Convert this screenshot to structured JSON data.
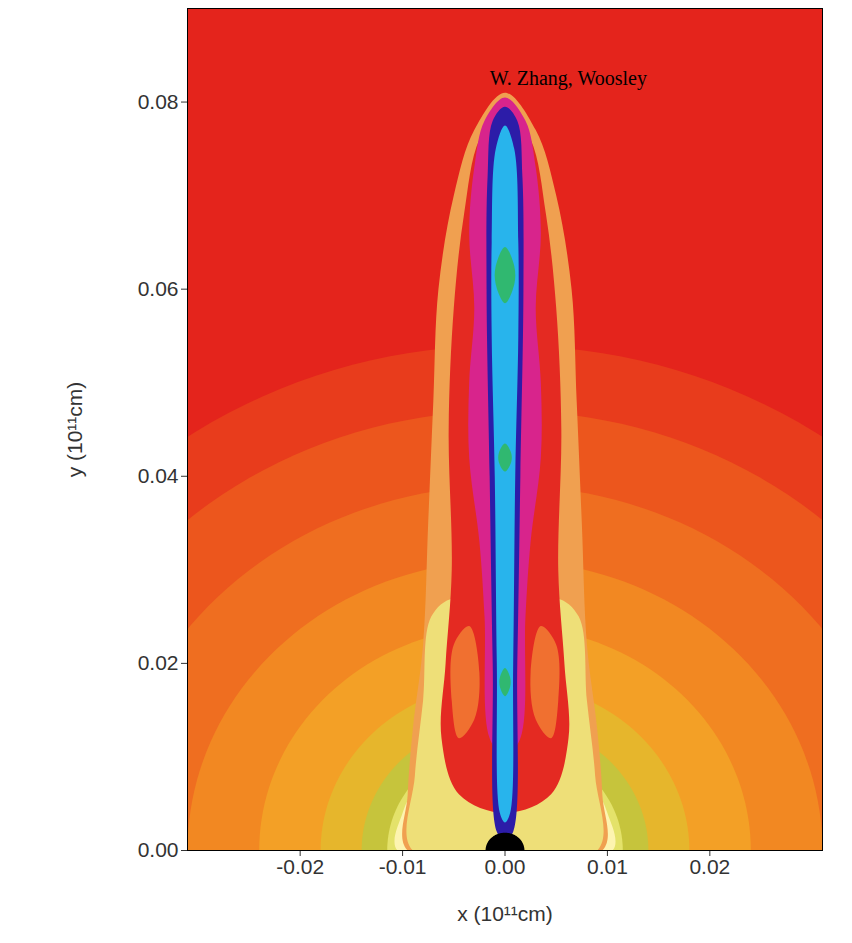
{
  "chart_data": {
    "type": "contour",
    "x_label": "x (10¹¹cm)",
    "y_label": "y (10¹¹cm)",
    "xlim": [
      -0.031,
      0.031
    ],
    "ylim": [
      0,
      0.09
    ],
    "xticks": [
      -0.02,
      -0.01,
      {
        "value": 0,
        "label": "0.00"
      },
      0.01,
      0.02
    ],
    "yticks": [
      {
        "value": 0,
        "label": "0.00"
      },
      0.02,
      0.04,
      0.06,
      0.08
    ],
    "color": "#e4241c",
    "annotations": [
      {
        "text": "W. Zhang, Woosley",
        "x": -0.0015,
        "y": 0.0825
      }
    ],
    "bands": [
      {
        "r": 0.054,
        "color": "#e83c1c"
      },
      {
        "r": 0.047,
        "color": "#ec561d"
      },
      {
        "r": 0.039,
        "color": "#ef6e20"
      },
      {
        "r": 0.031,
        "color": "#f28822"
      },
      {
        "r": 0.024,
        "color": "#f3a026"
      },
      {
        "r": 0.018,
        "color": "#e6b62c"
      },
      {
        "r": 0.014,
        "color": "#c6c43c"
      },
      {
        "r": 0.0115,
        "color": "#e4e26a"
      }
    ],
    "regions": [
      {
        "color": "#fdf4b0",
        "points": [
          [
            -0.0105,
            0
          ],
          [
            -0.01,
            0.004
          ],
          [
            -0.0085,
            0.007
          ],
          [
            -0.006,
            0.0085
          ],
          [
            -0.003,
            0.009
          ],
          [
            0,
            0.008
          ],
          [
            0.003,
            0.009
          ],
          [
            0.006,
            0.0085
          ],
          [
            0.0085,
            0.007
          ],
          [
            0.01,
            0.004
          ],
          [
            0.0105,
            0
          ]
        ]
      },
      {
        "color": "#f0a050",
        "points": [
          [
            -0.0095,
            0
          ],
          [
            -0.0095,
            0.006
          ],
          [
            -0.009,
            0.013
          ],
          [
            -0.008,
            0.022
          ],
          [
            -0.0075,
            0.035
          ],
          [
            -0.007,
            0.048
          ],
          [
            -0.0065,
            0.06
          ],
          [
            -0.005,
            0.07
          ],
          [
            -0.003,
            0.077
          ],
          [
            0,
            0.081
          ],
          [
            0.003,
            0.077
          ],
          [
            0.005,
            0.07
          ],
          [
            0.0065,
            0.06
          ],
          [
            0.007,
            0.048
          ],
          [
            0.0075,
            0.035
          ],
          [
            0.008,
            0.022
          ],
          [
            0.009,
            0.013
          ],
          [
            0.0095,
            0.006
          ],
          [
            0.0095,
            0
          ]
        ]
      },
      {
        "color": "#eedf78",
        "points": [
          [
            -0.009,
            0
          ],
          [
            -0.0088,
            0.008
          ],
          [
            -0.008,
            0.016
          ],
          [
            -0.0072,
            0.025
          ],
          [
            -0.005,
            0.027
          ],
          [
            0,
            0.026
          ],
          [
            0.005,
            0.027
          ],
          [
            0.0072,
            0.025
          ],
          [
            0.008,
            0.016
          ],
          [
            0.0088,
            0.008
          ],
          [
            0.009,
            0
          ]
        ]
      },
      {
        "color": "#e42a22",
        "points": [
          [
            -0.0045,
            0.006
          ],
          [
            -0.0062,
            0.012
          ],
          [
            -0.0058,
            0.02
          ],
          [
            -0.0052,
            0.03
          ],
          [
            -0.0055,
            0.045
          ],
          [
            -0.005,
            0.058
          ],
          [
            -0.004,
            0.068
          ],
          [
            -0.0025,
            0.076
          ],
          [
            0,
            0.0795
          ],
          [
            0.0025,
            0.076
          ],
          [
            0.004,
            0.068
          ],
          [
            0.005,
            0.058
          ],
          [
            0.0055,
            0.045
          ],
          [
            0.0052,
            0.03
          ],
          [
            0.0058,
            0.02
          ],
          [
            0.0062,
            0.012
          ],
          [
            0.0045,
            0.006
          ],
          [
            0,
            0.004
          ]
        ]
      },
      {
        "color": "#f07030",
        "points": [
          [
            -0.0045,
            0.012
          ],
          [
            -0.003,
            0.014
          ],
          [
            -0.0025,
            0.019
          ],
          [
            -0.0035,
            0.024
          ],
          [
            -0.005,
            0.022
          ],
          [
            -0.0052,
            0.016
          ]
        ]
      },
      {
        "color": "#f07030",
        "points": [
          [
            0.0045,
            0.012
          ],
          [
            0.003,
            0.014
          ],
          [
            0.0025,
            0.019
          ],
          [
            0.0035,
            0.024
          ],
          [
            0.005,
            0.022
          ],
          [
            0.0052,
            0.016
          ]
        ]
      },
      {
        "color": "#d8248c",
        "points": [
          [
            0,
            0.01
          ],
          [
            -0.0015,
            0.012
          ],
          [
            -0.002,
            0.025
          ],
          [
            -0.0025,
            0.033
          ],
          [
            -0.0035,
            0.042
          ],
          [
            -0.0035,
            0.05
          ],
          [
            -0.003,
            0.058
          ],
          [
            -0.0035,
            0.066
          ],
          [
            -0.003,
            0.073
          ],
          [
            -0.002,
            0.078
          ],
          [
            0,
            0.0805
          ],
          [
            0.002,
            0.078
          ],
          [
            0.003,
            0.073
          ],
          [
            0.0035,
            0.066
          ],
          [
            0.003,
            0.058
          ],
          [
            0.0035,
            0.05
          ],
          [
            0.0035,
            0.042
          ],
          [
            0.0025,
            0.033
          ],
          [
            0.002,
            0.025
          ],
          [
            0.0015,
            0.012
          ]
        ]
      },
      {
        "color": "#2c1ca8",
        "points": [
          [
            0,
            0.001
          ],
          [
            -0.0008,
            0.002
          ],
          [
            -0.0012,
            0.02
          ],
          [
            -0.0015,
            0.04
          ],
          [
            -0.0018,
            0.06
          ],
          [
            -0.0017,
            0.072
          ],
          [
            -0.0012,
            0.078
          ],
          [
            0,
            0.0795
          ],
          [
            0.0012,
            0.078
          ],
          [
            0.0017,
            0.072
          ],
          [
            0.0018,
            0.06
          ],
          [
            0.0015,
            0.04
          ],
          [
            0.0012,
            0.02
          ],
          [
            0.0008,
            0.002
          ]
        ]
      },
      {
        "color": "#28b4ec",
        "points": [
          [
            0,
            0.003
          ],
          [
            -0.0005,
            0.004
          ],
          [
            -0.0008,
            0.02
          ],
          [
            -0.001,
            0.04
          ],
          [
            -0.0013,
            0.055
          ],
          [
            -0.0013,
            0.065
          ],
          [
            -0.0009,
            0.075
          ],
          [
            0,
            0.0775
          ],
          [
            0.0009,
            0.075
          ],
          [
            0.0013,
            0.065
          ],
          [
            0.0013,
            0.055
          ],
          [
            0.001,
            0.04
          ],
          [
            0.0008,
            0.02
          ],
          [
            0.0005,
            0.004
          ]
        ]
      },
      {
        "color": "#30b870",
        "points": [
          [
            0,
            0.0585
          ],
          [
            -0.0009,
            0.0605
          ],
          [
            -0.0009,
            0.0625
          ],
          [
            0,
            0.0645
          ],
          [
            0.0009,
            0.0625
          ],
          [
            0.0009,
            0.0605
          ]
        ]
      },
      {
        "color": "#30b870",
        "points": [
          [
            0,
            0.0405
          ],
          [
            -0.0006,
            0.0415
          ],
          [
            -0.0006,
            0.0425
          ],
          [
            0,
            0.0435
          ],
          [
            0.0006,
            0.0425
          ],
          [
            0.0006,
            0.0415
          ]
        ]
      },
      {
        "color": "#30b870",
        "points": [
          [
            0,
            0.0165
          ],
          [
            -0.0005,
            0.0175
          ],
          [
            -0.0005,
            0.0185
          ],
          [
            0,
            0.0195
          ],
          [
            0.0005,
            0.0185
          ],
          [
            0.0005,
            0.0175
          ]
        ]
      }
    ],
    "disc": {
      "r": 0.0019,
      "color": "#000000"
    }
  }
}
